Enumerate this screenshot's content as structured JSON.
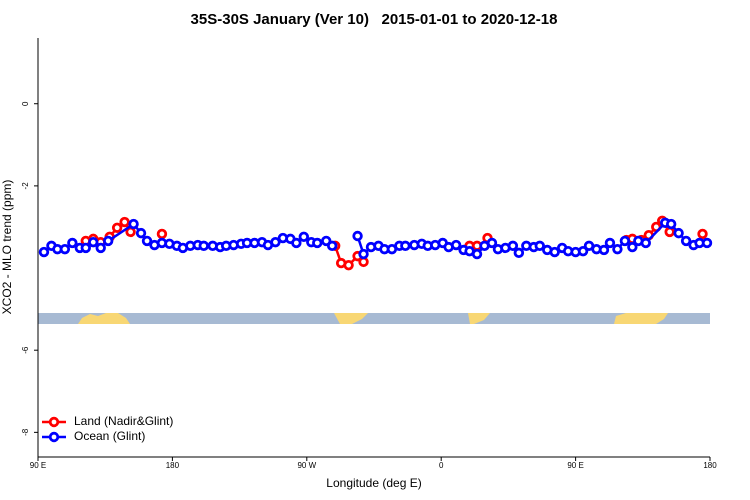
{
  "chart_data": {
    "type": "line",
    "title": "35S-30S January (Ver 10)   2015-01-01 to 2020-12-18",
    "x_label": "Longitude (deg E)",
    "y_label": "XCO2 - MLO trend (ppm)",
    "xlim": [
      90,
      540
    ],
    "ylim": [
      -8.6,
      1.6
    ],
    "xticks": [
      {
        "value": 90,
        "label": "90 E"
      },
      {
        "value": 180,
        "label": "180"
      },
      {
        "value": 270,
        "label": "90 W"
      },
      {
        "value": 360,
        "label": "0"
      },
      {
        "value": 450,
        "label": "90 E"
      },
      {
        "value": 540,
        "label": "180"
      }
    ],
    "yticks": [
      0,
      -2,
      -6,
      -8
    ],
    "legend": "bottom-left",
    "series": [
      {
        "name": "Land (Nadir&Glint)",
        "color": "#ff0000",
        "x": [
          122,
          127,
          132,
          138,
          143,
          148,
          152,
          null,
          173,
          null,
          289,
          293,
          298,
          304,
          308,
          null,
          379,
          384,
          null,
          391,
          null,
          484,
          488,
          494,
          499,
          504,
          508,
          513,
          null,
          535
        ],
        "values": [
          -3.34,
          -3.29,
          -3.37,
          -3.24,
          -3.02,
          -2.88,
          -3.12,
          null,
          -3.17,
          null,
          -3.46,
          -3.88,
          -3.93,
          -3.71,
          -3.85,
          null,
          -3.46,
          -3.46,
          null,
          -3.27,
          null,
          -3.32,
          -3.29,
          -3.32,
          -3.2,
          -3.0,
          -2.85,
          -3.12,
          null,
          -3.17
        ]
      },
      {
        "name": "Ocean (Glint)",
        "color": "#0000ff",
        "x": [
          94,
          99,
          103,
          108,
          113,
          118,
          122,
          127,
          132,
          137,
          154,
          159,
          163,
          168,
          173,
          178,
          183,
          187,
          192,
          197,
          201,
          207,
          212,
          216,
          221,
          226,
          230,
          235,
          240,
          244,
          249,
          254,
          259,
          263,
          268,
          273,
          277,
          283,
          287,
          null,
          304,
          308,
          313,
          318,
          322,
          327,
          332,
          336,
          342,
          347,
          351,
          356,
          361,
          365,
          370,
          375,
          379,
          384,
          389,
          394,
          398,
          403,
          408,
          412,
          417,
          422,
          426,
          431,
          436,
          441,
          445,
          450,
          455,
          459,
          464,
          469,
          473,
          478,
          483,
          488,
          492,
          497,
          510,
          514,
          519,
          524,
          529,
          533,
          538
        ],
        "values": [
          -3.61,
          -3.46,
          -3.54,
          -3.54,
          -3.39,
          -3.51,
          -3.51,
          -3.37,
          -3.51,
          -3.34,
          -2.93,
          -3.15,
          -3.34,
          -3.44,
          -3.39,
          -3.41,
          -3.46,
          -3.51,
          -3.46,
          -3.44,
          -3.46,
          -3.46,
          -3.49,
          -3.46,
          -3.44,
          -3.41,
          -3.39,
          -3.39,
          -3.37,
          -3.44,
          -3.37,
          -3.27,
          -3.29,
          -3.39,
          -3.24,
          -3.37,
          -3.39,
          -3.34,
          -3.46,
          null,
          -3.22,
          -3.66,
          -3.49,
          -3.46,
          -3.54,
          -3.54,
          -3.46,
          -3.46,
          -3.44,
          -3.41,
          -3.46,
          -3.44,
          -3.39,
          -3.49,
          -3.44,
          -3.56,
          -3.59,
          -3.66,
          -3.46,
          -3.39,
          -3.54,
          -3.51,
          -3.46,
          -3.63,
          -3.46,
          -3.49,
          -3.46,
          -3.56,
          -3.61,
          -3.51,
          -3.59,
          -3.61,
          -3.59,
          -3.46,
          -3.54,
          -3.56,
          -3.39,
          -3.54,
          -3.34,
          -3.49,
          -3.34,
          -3.39,
          -2.9,
          -2.93,
          -3.15,
          -3.34,
          -3.44,
          -3.39,
          -3.39
        ]
      }
    ]
  }
}
